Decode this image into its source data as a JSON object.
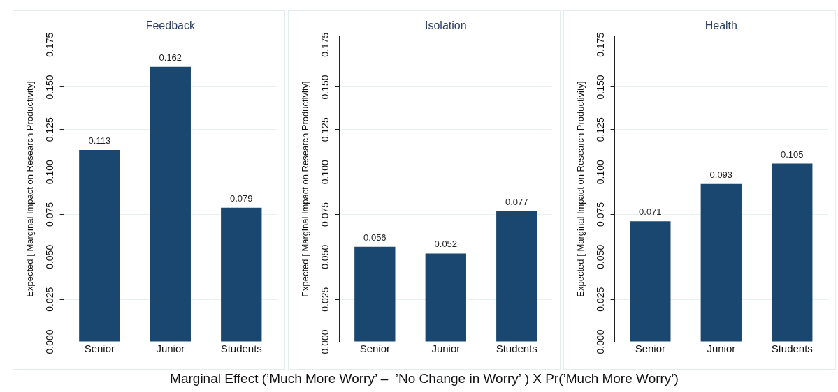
{
  "chart_data": [
    {
      "type": "bar",
      "title": "Feedback",
      "ylabel": "Expected [ Marginal Impact on Research Productivity]",
      "categories": [
        "Senior",
        "Junior",
        "Students"
      ],
      "values": [
        0.113,
        0.162,
        0.079
      ],
      "color": "#1a476f",
      "ylim": [
        0,
        0.18
      ],
      "yticks": [
        {
          "value": 0,
          "label": "0.000"
        },
        {
          "value": 0.025,
          "label": "0.025"
        },
        {
          "value": 0.05,
          "label": "0.050"
        },
        {
          "value": 0.075,
          "label": "0.075"
        },
        {
          "value": 0.1,
          "label": "0.100"
        },
        {
          "value": 0.125,
          "label": "0.125"
        },
        {
          "value": 0.15,
          "label": "0.150"
        },
        {
          "value": 0.175,
          "label": "0.175"
        }
      ],
      "grid": "y",
      "data_labels": true
    },
    {
      "type": "bar",
      "title": "Isolation",
      "ylabel": "Expected [ Marginal Impact on Research Productivity]",
      "xlabel": "Marginal Effect (’Much More Worry’ –  ’No Change in Worry’ ) X Pr(’Much More Worry’)",
      "categories": [
        "Senior",
        "Junior",
        "Students"
      ],
      "values": [
        0.056,
        0.052,
        0.077
      ],
      "color": "#1a476f",
      "ylim": [
        0,
        0.18
      ],
      "yticks": [
        {
          "value": 0,
          "label": "0.000"
        },
        {
          "value": 0.025,
          "label": "0.025"
        },
        {
          "value": 0.05,
          "label": "0.050"
        },
        {
          "value": 0.075,
          "label": "0.075"
        },
        {
          "value": 0.1,
          "label": "0.100"
        },
        {
          "value": 0.125,
          "label": "0.125"
        },
        {
          "value": 0.15,
          "label": "0.150"
        },
        {
          "value": 0.175,
          "label": "0.175"
        }
      ],
      "grid": "y",
      "data_labels": true
    },
    {
      "type": "bar",
      "title": "Health",
      "ylabel": "Expected [ Marginal Impact on Research Productivity]",
      "categories": [
        "Senior",
        "Junior",
        "Students"
      ],
      "values": [
        0.071,
        0.093,
        0.105
      ],
      "color": "#1a476f",
      "ylim": [
        0,
        0.18
      ],
      "yticks": [
        {
          "value": 0,
          "label": "0.000"
        },
        {
          "value": 0.025,
          "label": "0.025"
        },
        {
          "value": 0.05,
          "label": "0.050"
        },
        {
          "value": 0.075,
          "label": "0.075"
        },
        {
          "value": 0.1,
          "label": "0.100"
        },
        {
          "value": 0.125,
          "label": "0.125"
        },
        {
          "value": 0.15,
          "label": "0.150"
        },
        {
          "value": 0.175,
          "label": "0.175"
        }
      ],
      "grid": "y",
      "data_labels": true
    }
  ]
}
